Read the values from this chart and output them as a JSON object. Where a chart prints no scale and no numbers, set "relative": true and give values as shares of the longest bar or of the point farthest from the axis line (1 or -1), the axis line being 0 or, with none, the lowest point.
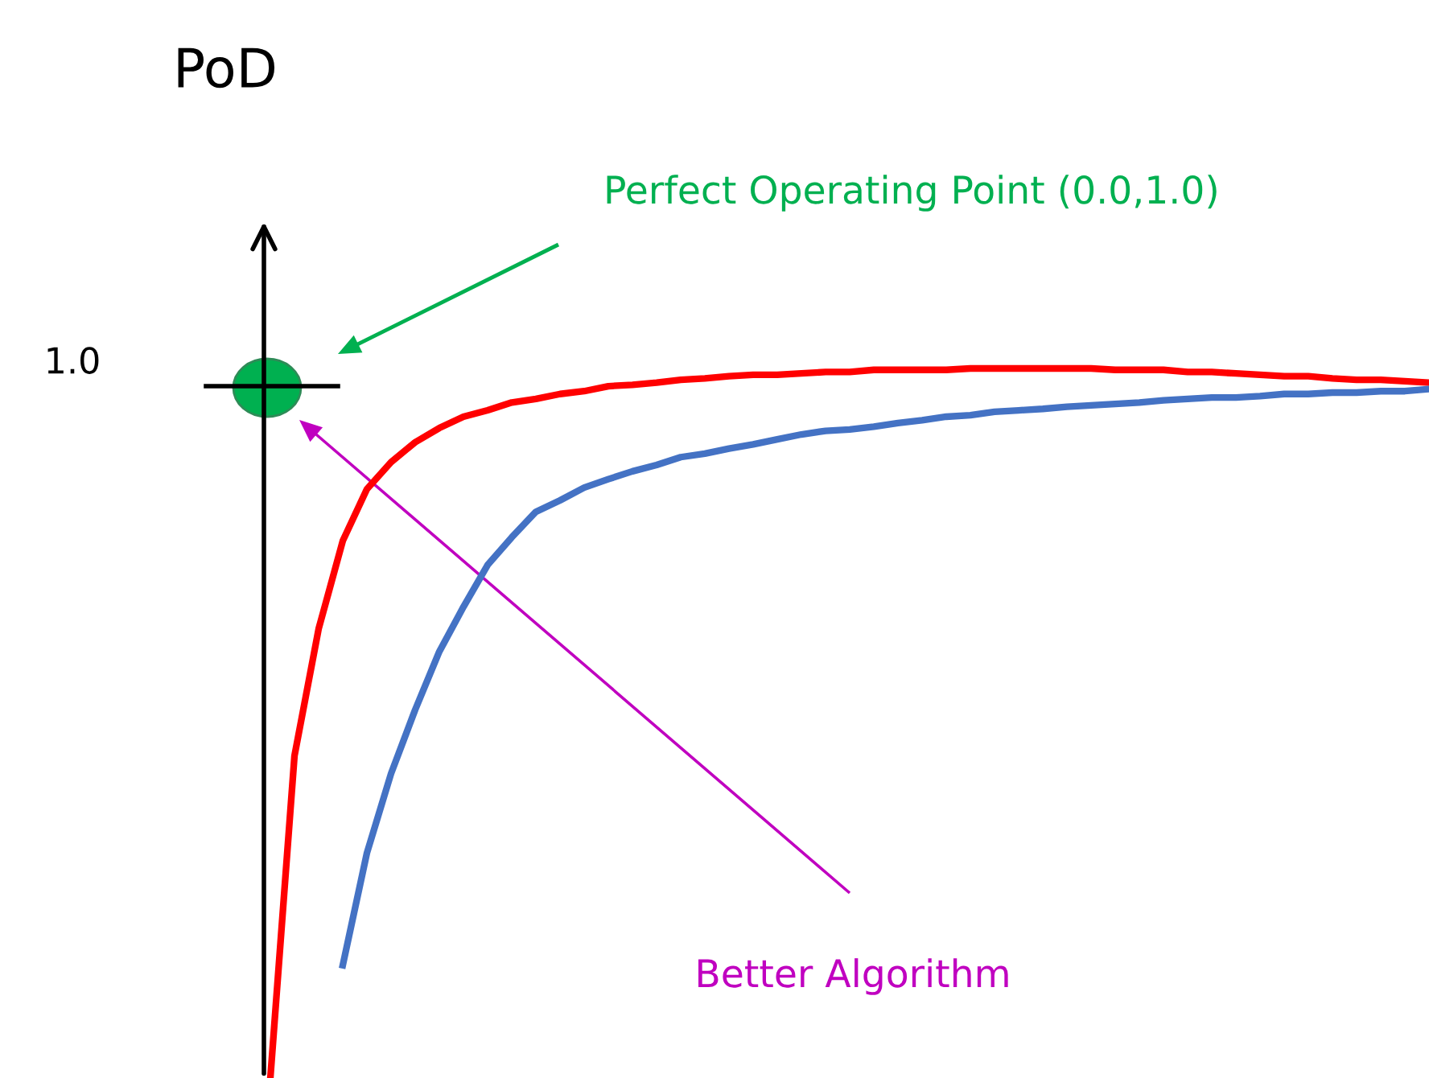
{
  "chart_data": {
    "type": "line",
    "relative": true,
    "marker": "none",
    "line_style": "solid",
    "categories": [
      null,
      null,
      null,
      null,
      null,
      null,
      null,
      null,
      null,
      null,
      null,
      null,
      null,
      null,
      null,
      null,
      null,
      null,
      null,
      null,
      null,
      null,
      null,
      null,
      null,
      null,
      null,
      null,
      null,
      null,
      null,
      null,
      null,
      null,
      null,
      null,
      null,
      null,
      null,
      null,
      null,
      null,
      null,
      null,
      null,
      null,
      null,
      null,
      null
    ],
    "series": [
      {
        "color": "#ff0000",
        "values": [
          0,
          0.454,
          0.633,
          0.757,
          0.83,
          0.868,
          0.896,
          0.916,
          0.932,
          0.941,
          0.952,
          0.957,
          0.964,
          0.968,
          0.975,
          0.977,
          0.98,
          0.984,
          0.986,
          0.989,
          0.991,
          0.991,
          0.993,
          0.995,
          0.995,
          0.998,
          0.998,
          0.998,
          0.998,
          1.0,
          1.0,
          1.0,
          1.0,
          1.0,
          1.0,
          0.998,
          0.998,
          0.998,
          0.995,
          0.995,
          0.993,
          0.991,
          0.989,
          0.989,
          0.986,
          0.984,
          0.984,
          0.982,
          0.98
        ]
      },
      {
        "color": "#4472c4",
        "values": [
          null,
          null,
          null,
          0.159,
          0.317,
          0.429,
          0.519,
          0.601,
          0.664,
          0.723,
          0.762,
          0.798,
          0.814,
          0.832,
          0.844,
          0.855,
          0.864,
          0.875,
          0.88,
          0.887,
          0.893,
          0.9,
          0.907,
          0.912,
          0.914,
          0.918,
          0.923,
          0.927,
          0.932,
          0.934,
          0.939,
          0.941,
          0.943,
          0.946,
          0.948,
          0.95,
          0.952,
          0.955,
          0.957,
          0.959,
          0.959,
          0.961,
          0.964,
          0.964,
          0.966,
          0.966,
          0.968,
          0.968,
          0.971
        ]
      }
    ],
    "annotations": [
      "Perfect Operating Point (0.0,1.0)",
      "Better Algorithm",
      "1.0",
      "PoD"
    ]
  }
}
